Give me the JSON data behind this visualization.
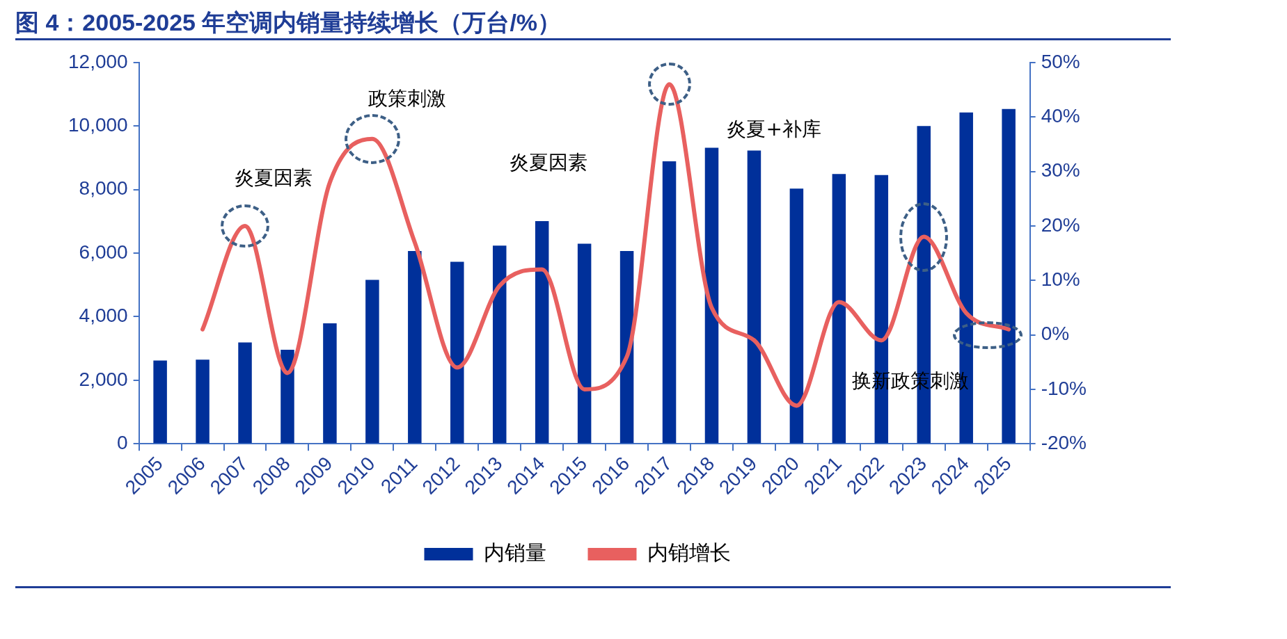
{
  "chart_data": {
    "type": "bar",
    "title": "图 4：2005-2025 年空调内销量持续增长（万台/%）",
    "categories": [
      "2005",
      "2006",
      "2007",
      "2008",
      "2009",
      "2010",
      "2011",
      "2012",
      "2013",
      "2014",
      "2015",
      "2016",
      "2017",
      "2018",
      "2019",
      "2020",
      "2021",
      "2022",
      "2023",
      "2024",
      "2025"
    ],
    "series": [
      {
        "name": "内销量",
        "color": "#00309a",
        "values": [
          2620,
          2650,
          3190,
          2960,
          3790,
          5160,
          6070,
          5730,
          6240,
          7010,
          6300,
          6070,
          8890,
          9320,
          9230,
          8030,
          8490,
          8460,
          10000,
          10430,
          10540
        ]
      },
      {
        "name": "内销增长",
        "type": "line",
        "axis": "y2",
        "color": "#e8605f",
        "values": [
          null,
          1,
          20,
          -7,
          28,
          36,
          17,
          -6,
          9,
          12,
          -10,
          -4,
          46,
          5,
          -1,
          -13,
          6,
          -1,
          18,
          4,
          1
        ]
      }
    ],
    "ylim": [
      0,
      12000
    ],
    "yticks": [
      0,
      {
        "value": 2000,
        "label": "2,000"
      },
      {
        "value": 4000,
        "label": "4,000"
      },
      {
        "value": 6000,
        "label": "6,000"
      },
      {
        "value": 8000,
        "label": "8,000"
      },
      {
        "value": 10000,
        "label": "10,000"
      },
      {
        "value": 12000,
        "label": "12,000"
      }
    ],
    "y2lim": [
      -20,
      50
    ],
    "y2ticks": [
      {
        "value": -20,
        "label": "-20%"
      },
      {
        "value": -10,
        "label": "-10%"
      },
      {
        "value": 0,
        "label": "0%"
      },
      {
        "value": 10,
        "label": "10%"
      },
      {
        "value": 20,
        "label": "20%"
      },
      {
        "value": 30,
        "label": "30%"
      },
      {
        "value": 40,
        "label": "40%"
      },
      {
        "value": 50,
        "label": "50%"
      }
    ],
    "grid": false,
    "legend": "bottom",
    "marker": "none",
    "line_style": "solid",
    "annotations": [
      "炎夏因素",
      "政策刺激",
      "炎夏因素",
      "炎夏+补库",
      "换新政策刺激"
    ]
  }
}
